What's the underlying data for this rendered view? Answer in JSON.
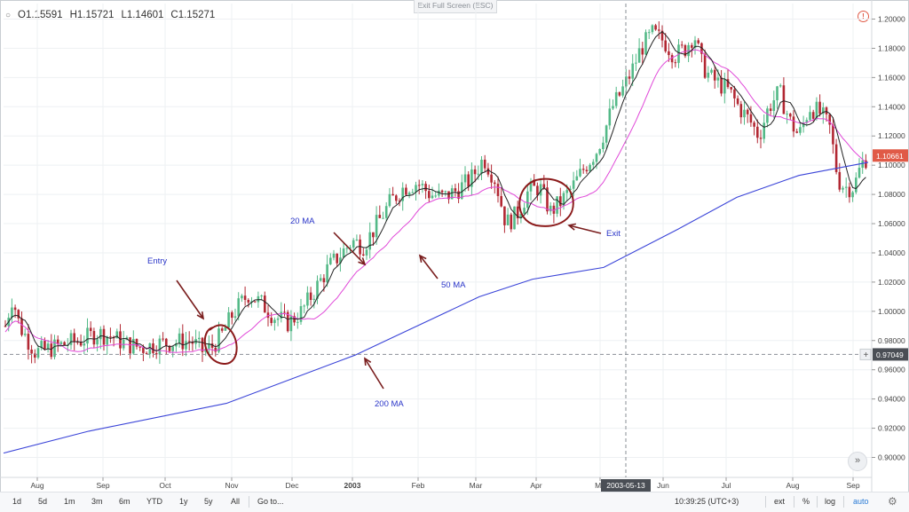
{
  "toolbar": {
    "ohlc": {
      "o": "O1.15591",
      "h": "H1.15721",
      "l": "L1.14601",
      "c": "C1.15271"
    },
    "exit_fullscreen": "Exit Full Screen (ESC)",
    "warning_icon": "alert-circle-icon"
  },
  "chart_data": {
    "type": "candlestick",
    "y_range": [
      0.89,
      1.21
    ],
    "y_ticks": [
      "1.20000",
      "1.18000",
      "1.16000",
      "1.14000",
      "1.12000",
      "1.10000",
      "1.08000",
      "1.06000",
      "1.04000",
      "1.02000",
      "1.00000",
      "0.98000",
      "0.96000",
      "0.94000",
      "0.92000",
      "0.90000"
    ],
    "x_labels": [
      "Aug",
      "Sep",
      "Oct",
      "Nov",
      "Dec",
      "2003",
      "Feb",
      "Mar",
      "Apr",
      "Ma",
      "Jun",
      "Jul",
      "Aug",
      "Sep"
    ],
    "price_key": [
      {
        "month": "Aug",
        "price": 0.975
      },
      {
        "month": "Sep",
        "price": 0.985
      },
      {
        "month": "Oct",
        "price": 0.978
      },
      {
        "month": "Nov",
        "price": 0.995
      },
      {
        "month": "Dec",
        "price": 1.02
      },
      {
        "month": "2003",
        "price": 1.05
      },
      {
        "month": "Feb",
        "price": 1.08
      },
      {
        "month": "Mar",
        "price": 1.075
      },
      {
        "month": "Apr",
        "price": 1.075
      },
      {
        "month": "Ma",
        "price": 1.17
      },
      {
        "month": "Jun",
        "price": 1.175
      },
      {
        "month": "Jul",
        "price": 1.14
      },
      {
        "month": "Aug",
        "price": 1.13
      },
      {
        "month": "Sep",
        "price": 1.095
      }
    ],
    "moving_averages": [
      {
        "name": "20 MA",
        "color": "#222222"
      },
      {
        "name": "50 MA",
        "color": "#e048d8"
      },
      {
        "name": "200 MA",
        "color": "#3a44d8"
      }
    ],
    "current_price_label": "1.10661",
    "crosshair_price_label": "0.97049",
    "crosshair_date_label": "2003-05-13",
    "annotations": [
      "Entry",
      "20 MA",
      "50 MA",
      "200 MA",
      "Exit"
    ],
    "colors": {
      "up": "#53b987",
      "down": "#b22833",
      "price_tag": "#e05a47",
      "annotation_text": "#2a35c8",
      "arrow": "#7a1e1e"
    }
  },
  "bottom_bar": {
    "timeframes": [
      "1d",
      "5d",
      "1m",
      "3m",
      "6m",
      "YTD",
      "1y",
      "5y",
      "All"
    ],
    "goto": "Go to...",
    "clock": "10:39:25 (UTC+3)",
    "ext": "ext",
    "percent": "%",
    "log": "log",
    "auto": "auto",
    "settings_icon": "gear-icon"
  },
  "scroll_icon": "double-chevron-right-icon"
}
